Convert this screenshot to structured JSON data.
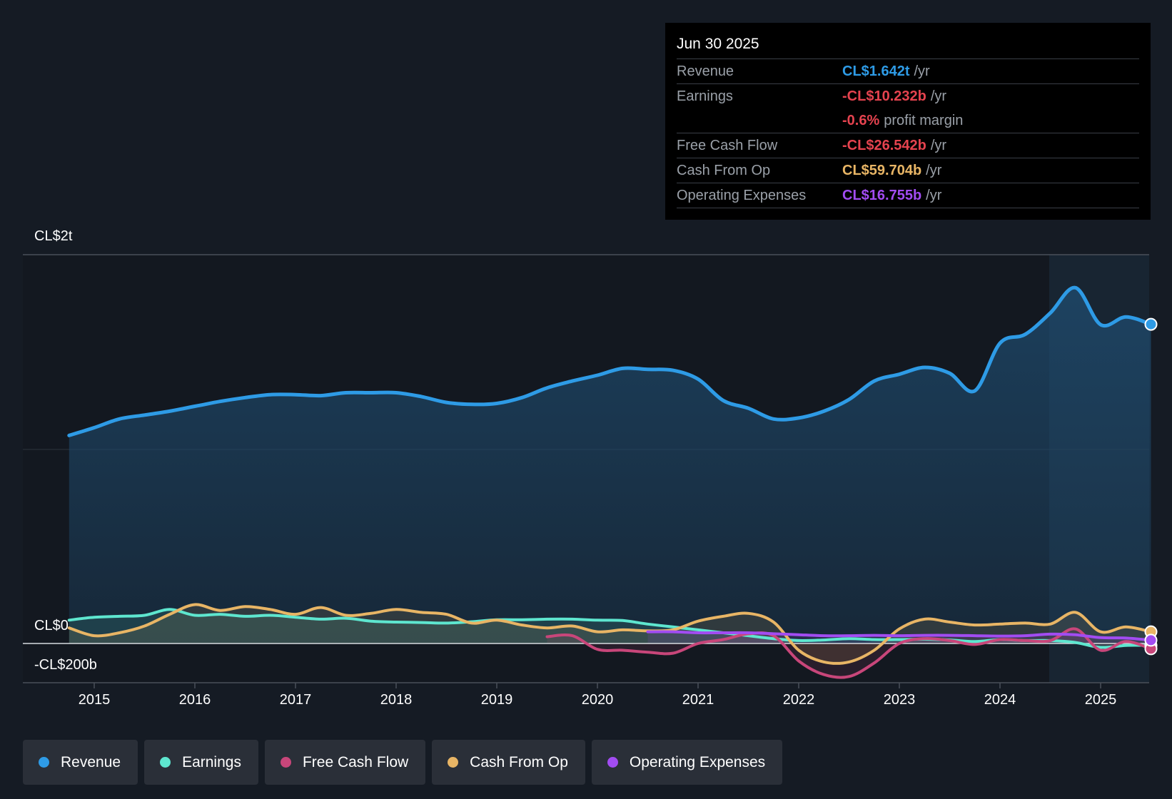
{
  "tooltip": {
    "date": "Jun 30 2025",
    "rows": [
      {
        "label": "Revenue",
        "value": "CL$1.642t",
        "unit": "/yr",
        "color": "#2e9be6"
      },
      {
        "label": "Earnings",
        "value": "-CL$10.232b",
        "unit": "/yr",
        "color": "#e5434f"
      },
      {
        "label": "",
        "value": "-0.6%",
        "unit": "profit margin",
        "color": "#e5434f"
      },
      {
        "label": "Free Cash Flow",
        "value": "-CL$26.542b",
        "unit": "/yr",
        "color": "#e5434f"
      },
      {
        "label": "Cash From Op",
        "value": "CL$59.704b",
        "unit": "/yr",
        "color": "#e8b565"
      },
      {
        "label": "Operating Expenses",
        "value": "CL$16.755b",
        "unit": "/yr",
        "color": "#a24cf2"
      }
    ]
  },
  "axis": {
    "top_label": "CL$2t",
    "zero_label": "CL$0",
    "bottom_label": "-CL$200b"
  },
  "legend": [
    {
      "label": "Revenue",
      "color": "#2e9be6"
    },
    {
      "label": "Earnings",
      "color": "#5ee6cf"
    },
    {
      "label": "Free Cash Flow",
      "color": "#c8467a"
    },
    {
      "label": "Cash From Op",
      "color": "#e8b565"
    },
    {
      "label": "Operating Expenses",
      "color": "#a24cf2"
    }
  ],
  "chart_data": {
    "type": "line",
    "title": "",
    "xlabel": "",
    "ylabel": "",
    "ylim": [
      -200,
      2000
    ],
    "units": "CL$ billions",
    "xlim": [
      2014.75,
      2025.5
    ],
    "xticks": [
      "2015",
      "2016",
      "2017",
      "2018",
      "2019",
      "2020",
      "2021",
      "2022",
      "2023",
      "2024",
      "2025"
    ],
    "series": [
      {
        "name": "Revenue",
        "color": "#2e9be6",
        "area": true,
        "x": [
          2014.75,
          2015.0,
          2015.25,
          2015.5,
          2015.75,
          2016.0,
          2016.25,
          2016.5,
          2016.75,
          2017.0,
          2017.25,
          2017.5,
          2017.75,
          2018.0,
          2018.25,
          2018.5,
          2018.75,
          2019.0,
          2019.25,
          2019.5,
          2019.75,
          2020.0,
          2020.25,
          2020.5,
          2020.75,
          2021.0,
          2021.25,
          2021.5,
          2021.75,
          2022.0,
          2022.25,
          2022.5,
          2022.75,
          2023.0,
          2023.25,
          2023.5,
          2023.75,
          2024.0,
          2024.25,
          2024.5,
          2024.75,
          2025.0,
          2025.25,
          2025.5
        ],
        "values": [
          1070,
          1110,
          1155,
          1175,
          1195,
          1220,
          1245,
          1265,
          1280,
          1280,
          1275,
          1290,
          1290,
          1290,
          1270,
          1240,
          1230,
          1235,
          1265,
          1315,
          1350,
          1380,
          1415,
          1410,
          1405,
          1360,
          1250,
          1210,
          1155,
          1160,
          1195,
          1255,
          1350,
          1385,
          1420,
          1390,
          1300,
          1545,
          1590,
          1700,
          1830,
          1640,
          1680,
          1642
        ]
      },
      {
        "name": "Earnings",
        "color": "#5ee6cf",
        "x": [
          2014.75,
          2015.0,
          2015.25,
          2015.5,
          2015.75,
          2016.0,
          2016.25,
          2016.5,
          2016.75,
          2017.0,
          2017.25,
          2017.5,
          2017.75,
          2018.0,
          2018.25,
          2018.5,
          2018.75,
          2019.0,
          2019.25,
          2019.5,
          2019.75,
          2020.0,
          2020.25,
          2020.5,
          2020.75,
          2021.0,
          2021.25,
          2021.5,
          2021.75,
          2022.0,
          2022.25,
          2022.5,
          2022.75,
          2023.0,
          2023.25,
          2023.5,
          2023.75,
          2024.0,
          2024.25,
          2024.5,
          2024.75,
          2025.0,
          2025.25,
          2025.5
        ],
        "values": [
          120,
          135,
          140,
          145,
          175,
          145,
          150,
          140,
          145,
          135,
          125,
          130,
          115,
          110,
          108,
          105,
          112,
          122,
          122,
          125,
          125,
          120,
          118,
          100,
          85,
          70,
          55,
          40,
          25,
          15,
          18,
          25,
          20,
          20,
          22,
          18,
          10,
          20,
          15,
          15,
          5,
          -20,
          -10,
          -10
        ]
      },
      {
        "name": "Free Cash Flow",
        "color": "#c8467a",
        "x": [
          2019.5,
          2019.75,
          2020.0,
          2020.25,
          2020.5,
          2020.75,
          2021.0,
          2021.25,
          2021.5,
          2021.75,
          2022.0,
          2022.25,
          2022.5,
          2022.75,
          2023.0,
          2023.25,
          2023.5,
          2023.75,
          2024.0,
          2024.25,
          2024.5,
          2024.75,
          2025.0,
          2025.25,
          2025.5
        ],
        "values": [
          35,
          40,
          -30,
          -35,
          -45,
          -50,
          0,
          20,
          50,
          40,
          -90,
          -160,
          -170,
          -100,
          0,
          25,
          15,
          -5,
          20,
          15,
          15,
          75,
          -35,
          10,
          -27
        ]
      },
      {
        "name": "Cash From Op",
        "color": "#e8b565",
        "x": [
          2014.75,
          2015.0,
          2015.25,
          2015.5,
          2015.75,
          2016.0,
          2016.25,
          2016.5,
          2016.75,
          2017.0,
          2017.25,
          2017.5,
          2017.75,
          2018.0,
          2018.25,
          2018.5,
          2018.75,
          2019.0,
          2019.25,
          2019.5,
          2019.75,
          2020.0,
          2020.25,
          2020.5,
          2020.75,
          2021.0,
          2021.25,
          2021.5,
          2021.75,
          2022.0,
          2022.25,
          2022.5,
          2022.75,
          2023.0,
          2023.25,
          2023.5,
          2023.75,
          2024.0,
          2024.25,
          2024.5,
          2024.75,
          2025.0,
          2025.25,
          2025.5
        ],
        "values": [
          80,
          40,
          55,
          90,
          150,
          200,
          170,
          190,
          175,
          150,
          185,
          145,
          155,
          175,
          160,
          150,
          105,
          120,
          95,
          80,
          90,
          60,
          70,
          65,
          70,
          115,
          140,
          155,
          110,
          -35,
          -95,
          -95,
          -35,
          75,
          125,
          110,
          95,
          100,
          105,
          100,
          160,
          60,
          85,
          60
        ]
      },
      {
        "name": "Operating Expenses",
        "color": "#a24cf2",
        "x": [
          2020.5,
          2020.75,
          2021.0,
          2021.25,
          2021.5,
          2021.75,
          2022.0,
          2022.25,
          2022.5,
          2022.75,
          2023.0,
          2023.25,
          2023.5,
          2023.75,
          2024.0,
          2024.25,
          2024.5,
          2024.75,
          2025.0,
          2025.25,
          2025.5
        ],
        "values": [
          60,
          60,
          55,
          55,
          55,
          50,
          45,
          40,
          40,
          42,
          40,
          42,
          42,
          40,
          38,
          40,
          48,
          45,
          30,
          28,
          17
        ]
      }
    ]
  }
}
